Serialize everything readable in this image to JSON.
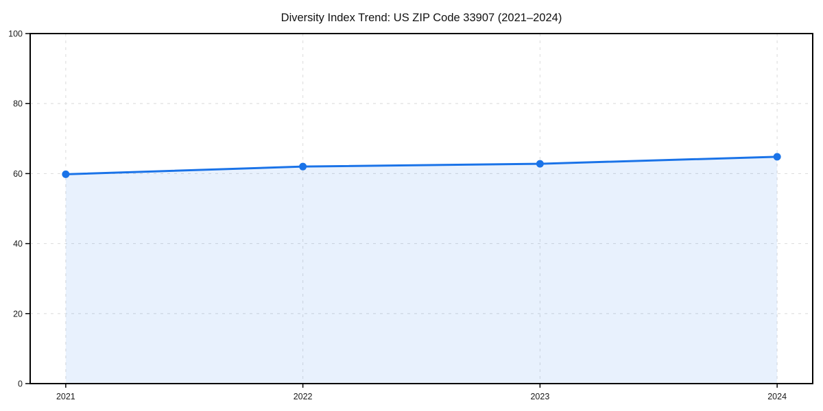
{
  "chart_data": {
    "type": "area",
    "title": "Diversity Index Trend: US ZIP Code 33907 (2021–2024)",
    "x": [
      2021,
      2022,
      2023,
      2024
    ],
    "xticks": [
      "2021",
      "2022",
      "2023",
      "2024"
    ],
    "yticks": [
      0,
      20,
      40,
      60,
      80,
      100
    ],
    "ylim": [
      0,
      100
    ],
    "xlabel": "",
    "ylabel": "",
    "grid": true,
    "grid_style": "dashed",
    "legend_position": "none",
    "series": [
      {
        "name": "Diversity Index",
        "values": [
          59.8,
          62.0,
          62.8,
          64.8
        ]
      }
    ],
    "colors": {
      "line": "#1a73e8",
      "marker": "#1a73e8",
      "fill": "#1a73e8",
      "fill_opacity": 0.1,
      "grid": "#dedede",
      "axis": "#000000",
      "tick_label": "#1a1a1a",
      "title": "#111111",
      "background": "#ffffff"
    }
  }
}
